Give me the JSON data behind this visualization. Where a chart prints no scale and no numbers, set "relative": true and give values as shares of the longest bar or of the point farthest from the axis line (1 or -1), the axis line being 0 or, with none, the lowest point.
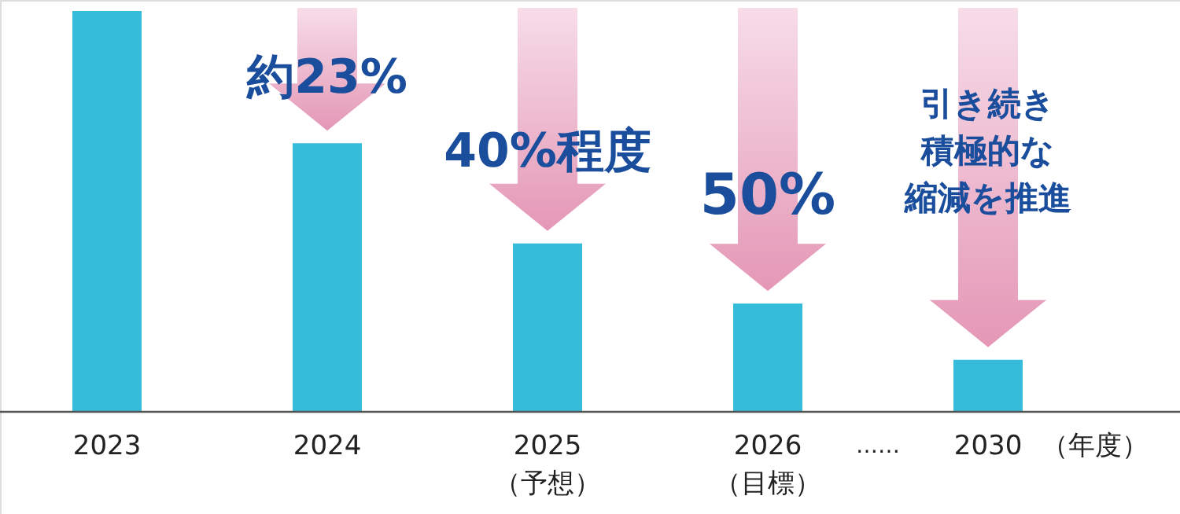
{
  "chart_data": {
    "type": "bar",
    "relative": true,
    "categories": [
      "2023",
      "2024",
      "2025\n（予想）",
      "2026\n（目標）",
      "2030"
    ],
    "values": [
      1,
      0.67,
      0.42,
      0.27,
      0.13
    ],
    "color": "#35bcdb",
    "xlabel": "（年度）",
    "annotations": [
      "約23%",
      "40%程度",
      "50%",
      "引き続き",
      "積極的な",
      "縮減を推進",
      "……"
    ]
  }
}
